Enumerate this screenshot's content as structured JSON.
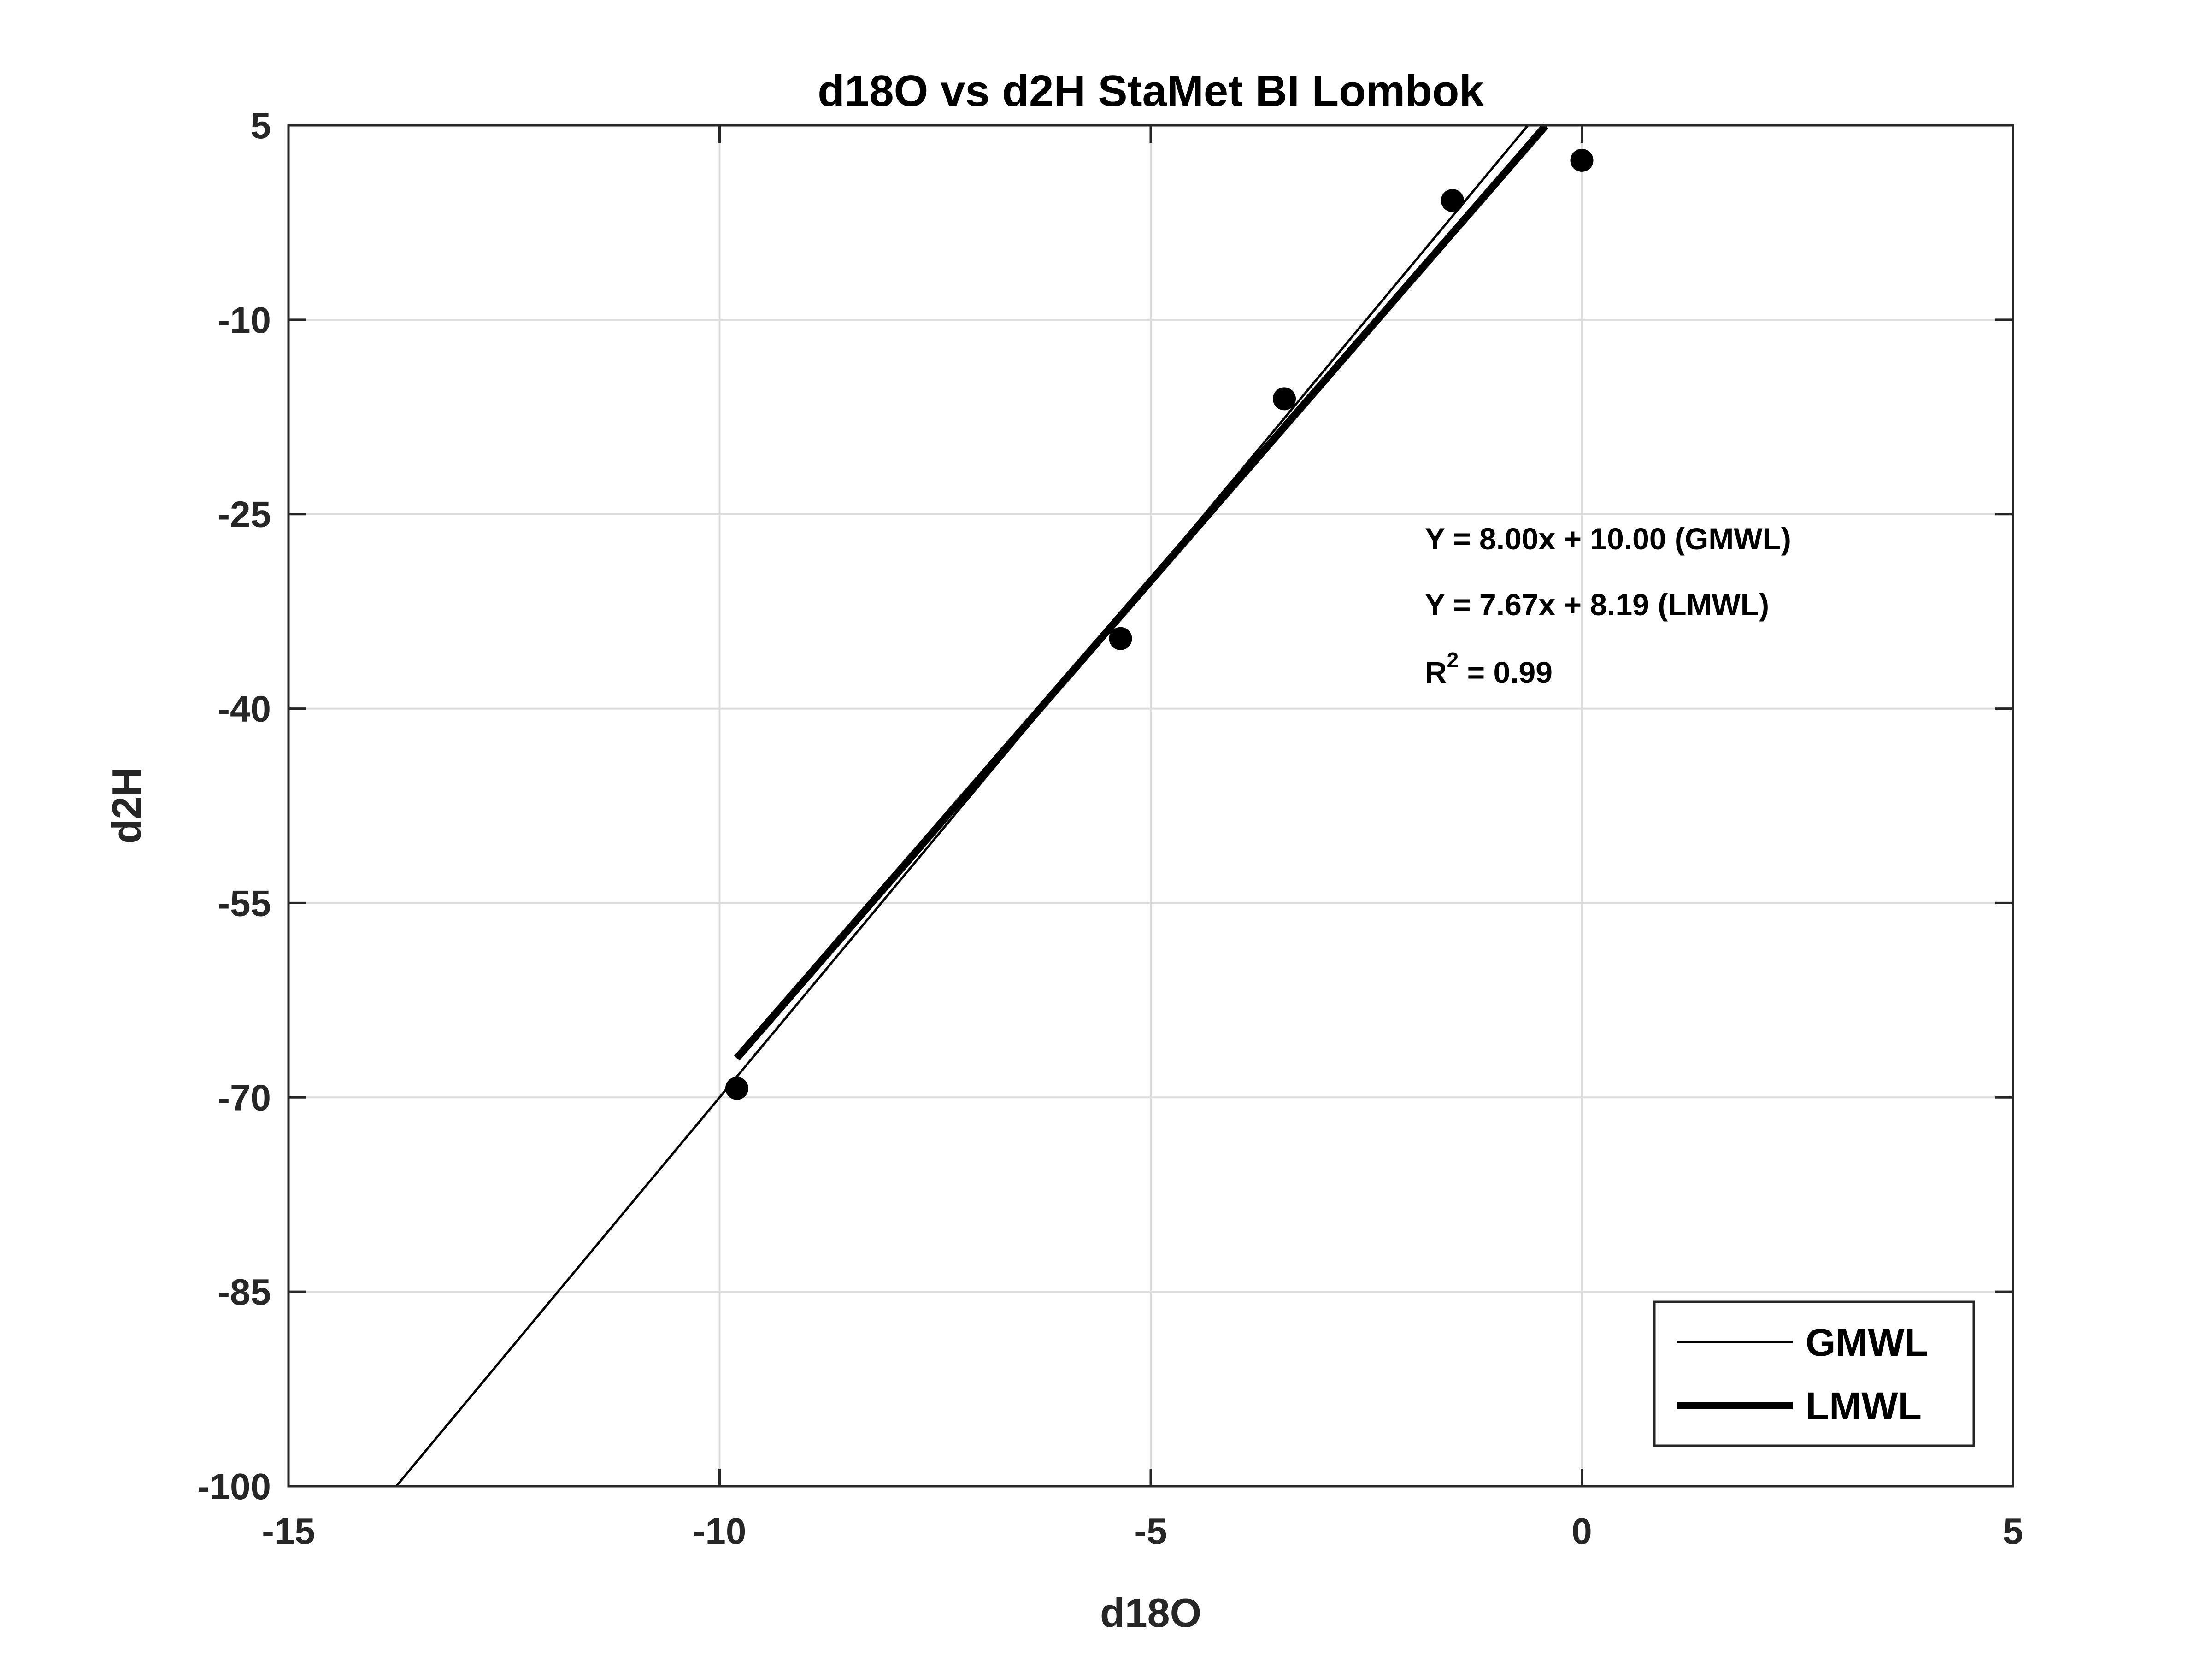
{
  "chart_data": {
    "type": "scatter",
    "title": "d18O vs d2H StaMet BI Lombok",
    "xlabel": "d18O",
    "ylabel": "d2H",
    "xlim": [
      -15,
      5
    ],
    "ylim": [
      -100,
      5
    ],
    "xticks": [
      -15,
      -10,
      -5,
      0,
      5
    ],
    "yticks": [
      -100,
      -85,
      -70,
      -55,
      -40,
      -25,
      -10,
      5
    ],
    "grid": true,
    "points": [
      {
        "x": -9.8,
        "y": -69.3
      },
      {
        "x": -5.35,
        "y": -34.6
      },
      {
        "x": -3.45,
        "y": -16.1
      },
      {
        "x": -1.5,
        "y": -0.8
      },
      {
        "x": 0.0,
        "y": 2.3
      }
    ],
    "series": [
      {
        "name": "GMWL",
        "slope": 8.0,
        "intercept": 10.0,
        "x_range": [
          -13.75,
          -0.62
        ],
        "line_width": "thin"
      },
      {
        "name": "LMWL",
        "slope": 7.67,
        "intercept": 8.19,
        "x_range": [
          -9.8,
          -0.42
        ],
        "line_width": "thick"
      }
    ],
    "annotations": [
      {
        "id": "gmwl-eq",
        "text": "Y = 8.00x + 10.00 (GMWL)"
      },
      {
        "id": "lmwl-eq",
        "text": "Y = 7.67x + 8.19 (LMWL)"
      },
      {
        "id": "r2",
        "base": "R",
        "sup": "2",
        "rest": " = 0.99"
      }
    ],
    "legend": {
      "placement": "bottom-right",
      "entries": [
        "GMWL",
        "LMWL"
      ]
    },
    "colors": {
      "axis": "#262626",
      "grid": "#dcdcdc",
      "marker": "#000000",
      "line": "#000000"
    }
  }
}
